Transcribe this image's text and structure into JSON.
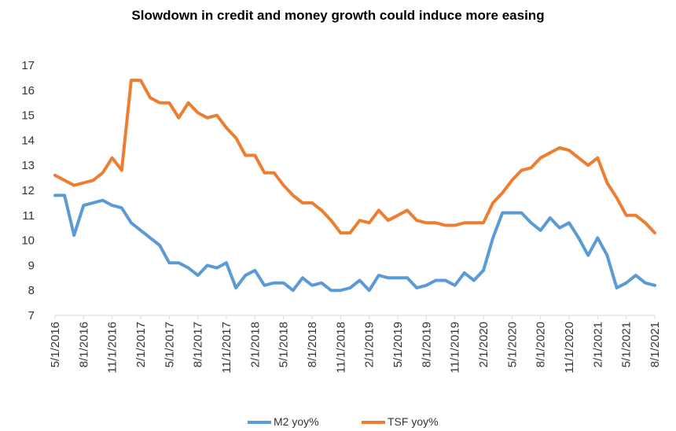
{
  "chart_data": {
    "type": "line",
    "title": "Slowdown in credit and money growth could induce more easing",
    "xlabel": "",
    "ylabel": "",
    "ylim": [
      7,
      17
    ],
    "yticks": [
      "7",
      "8",
      "9",
      "10",
      "11",
      "12",
      "13",
      "14",
      "15",
      "16",
      "17"
    ],
    "x_tick_labels": [
      "5/1/2016",
      "8/1/2016",
      "11/1/2016",
      "2/1/2017",
      "5/1/2017",
      "8/1/2017",
      "11/1/2017",
      "2/1/2018",
      "5/1/2018",
      "8/1/2018",
      "11/1/2018",
      "2/1/2019",
      "5/1/2019",
      "8/1/2019",
      "11/1/2019",
      "2/1/2020",
      "5/1/2020",
      "8/1/2020",
      "11/1/2020",
      "2/1/2021",
      "5/1/2021",
      "8/1/2021"
    ],
    "x": [
      "5/1/2016",
      "6/1/2016",
      "7/1/2016",
      "8/1/2016",
      "9/1/2016",
      "10/1/2016",
      "11/1/2016",
      "12/1/2016",
      "1/1/2017",
      "2/1/2017",
      "3/1/2017",
      "4/1/2017",
      "5/1/2017",
      "6/1/2017",
      "7/1/2017",
      "8/1/2017",
      "9/1/2017",
      "10/1/2017",
      "11/1/2017",
      "12/1/2017",
      "1/1/2018",
      "2/1/2018",
      "3/1/2018",
      "4/1/2018",
      "5/1/2018",
      "6/1/2018",
      "7/1/2018",
      "8/1/2018",
      "9/1/2018",
      "10/1/2018",
      "11/1/2018",
      "12/1/2018",
      "1/1/2019",
      "2/1/2019",
      "3/1/2019",
      "4/1/2019",
      "5/1/2019",
      "6/1/2019",
      "7/1/2019",
      "8/1/2019",
      "9/1/2019",
      "10/1/2019",
      "11/1/2019",
      "12/1/2019",
      "1/1/2020",
      "2/1/2020",
      "3/1/2020",
      "4/1/2020",
      "5/1/2020",
      "6/1/2020",
      "7/1/2020",
      "8/1/2020",
      "9/1/2020",
      "10/1/2020",
      "11/1/2020",
      "12/1/2020",
      "1/1/2021",
      "2/1/2021",
      "3/1/2021",
      "4/1/2021",
      "5/1/2021",
      "6/1/2021",
      "7/1/2021",
      "8/1/2021"
    ],
    "series": [
      {
        "name": "M2 yoy%",
        "color": "#5B9BD5",
        "values": [
          11.8,
          11.8,
          10.2,
          11.4,
          11.5,
          11.6,
          11.4,
          11.3,
          10.7,
          10.4,
          10.1,
          9.8,
          9.1,
          9.1,
          8.9,
          8.6,
          9.0,
          8.9,
          9.1,
          8.1,
          8.6,
          8.8,
          8.2,
          8.3,
          8.3,
          8.0,
          8.5,
          8.2,
          8.3,
          8.0,
          8.0,
          8.1,
          8.4,
          8.0,
          8.6,
          8.5,
          8.5,
          8.5,
          8.1,
          8.2,
          8.4,
          8.4,
          8.2,
          8.7,
          8.4,
          8.8,
          10.1,
          11.1,
          11.1,
          11.1,
          10.7,
          10.4,
          10.9,
          10.5,
          10.7,
          10.1,
          9.4,
          10.1,
          9.4,
          8.1,
          8.3,
          8.6,
          8.3,
          8.2
        ]
      },
      {
        "name": "TSF yoy%",
        "color": "#ED7D31",
        "values": [
          12.6,
          12.4,
          12.2,
          12.3,
          12.4,
          12.7,
          13.3,
          12.8,
          16.4,
          16.4,
          15.7,
          15.5,
          15.5,
          14.9,
          15.5,
          15.1,
          14.9,
          15.0,
          14.5,
          14.1,
          13.4,
          13.4,
          12.7,
          12.7,
          12.2,
          11.8,
          11.5,
          11.5,
          11.2,
          10.8,
          10.3,
          10.3,
          10.8,
          10.7,
          11.2,
          10.8,
          11.0,
          11.2,
          10.8,
          10.7,
          10.7,
          10.6,
          10.6,
          10.7,
          10.7,
          10.7,
          11.5,
          11.9,
          12.4,
          12.8,
          12.9,
          13.3,
          13.5,
          13.7,
          13.6,
          13.3,
          13.0,
          13.3,
          12.3,
          11.7,
          11.0,
          11.0,
          10.7,
          10.3
        ]
      }
    ],
    "legend_position": "bottom-center",
    "grid": false
  }
}
